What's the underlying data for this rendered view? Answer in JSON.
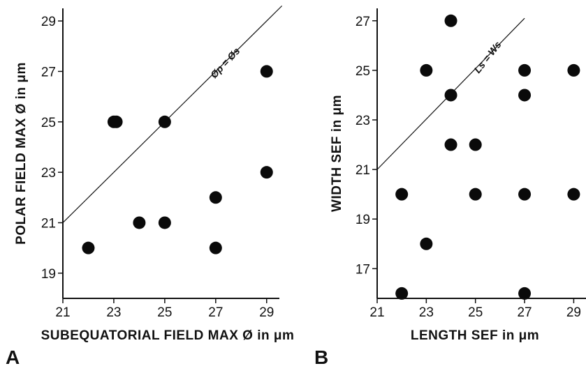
{
  "chart_data": [
    {
      "type": "scatter",
      "panel_label": "A",
      "xlabel": "SUBEQUATORIAL FIELD MAX Ø in μm",
      "ylabel": "POLAR FIELD MAX Ø in μm",
      "xlim": [
        21,
        29.5
      ],
      "ylim": [
        18,
        29.5
      ],
      "xticks": [
        21,
        23,
        25,
        27,
        29
      ],
      "yticks": [
        19,
        21,
        23,
        25,
        27,
        29
      ],
      "grid": false,
      "reference_line": {
        "label": "Øp = Øs",
        "from": [
          21,
          21
        ],
        "to": [
          29.6,
          29.6
        ]
      },
      "points": [
        {
          "x": 22,
          "y": 20
        },
        {
          "x": 23,
          "y": 25
        },
        {
          "x": 23.1,
          "y": 25
        },
        {
          "x": 24,
          "y": 21
        },
        {
          "x": 25,
          "y": 21
        },
        {
          "x": 25,
          "y": 25
        },
        {
          "x": 27,
          "y": 22
        },
        {
          "x": 27,
          "y": 20
        },
        {
          "x": 29,
          "y": 27
        },
        {
          "x": 29,
          "y": 23
        }
      ]
    },
    {
      "type": "scatter",
      "panel_label": "B",
      "xlabel": "LENGTH SEF in μm",
      "ylabel": "WIDTH SEF in μm",
      "xlim": [
        21,
        29.5
      ],
      "ylim": [
        15.8,
        27.5
      ],
      "xticks": [
        21,
        23,
        25,
        27,
        29
      ],
      "yticks": [
        17,
        19,
        21,
        23,
        25,
        27
      ],
      "grid": false,
      "reference_line": {
        "label": "Ls = Ws",
        "from": [
          21,
          21
        ],
        "to": [
          27,
          27.1
        ]
      },
      "points": [
        {
          "x": 22,
          "y": 20
        },
        {
          "x": 22,
          "y": 16
        },
        {
          "x": 23,
          "y": 25
        },
        {
          "x": 23,
          "y": 18
        },
        {
          "x": 24,
          "y": 27
        },
        {
          "x": 24,
          "y": 24
        },
        {
          "x": 24,
          "y": 22
        },
        {
          "x": 25,
          "y": 22
        },
        {
          "x": 25,
          "y": 20
        },
        {
          "x": 27,
          "y": 25
        },
        {
          "x": 27,
          "y": 24
        },
        {
          "x": 27,
          "y": 20
        },
        {
          "x": 27,
          "y": 16
        },
        {
          "x": 29,
          "y": 25
        },
        {
          "x": 29,
          "y": 20
        }
      ]
    }
  ]
}
